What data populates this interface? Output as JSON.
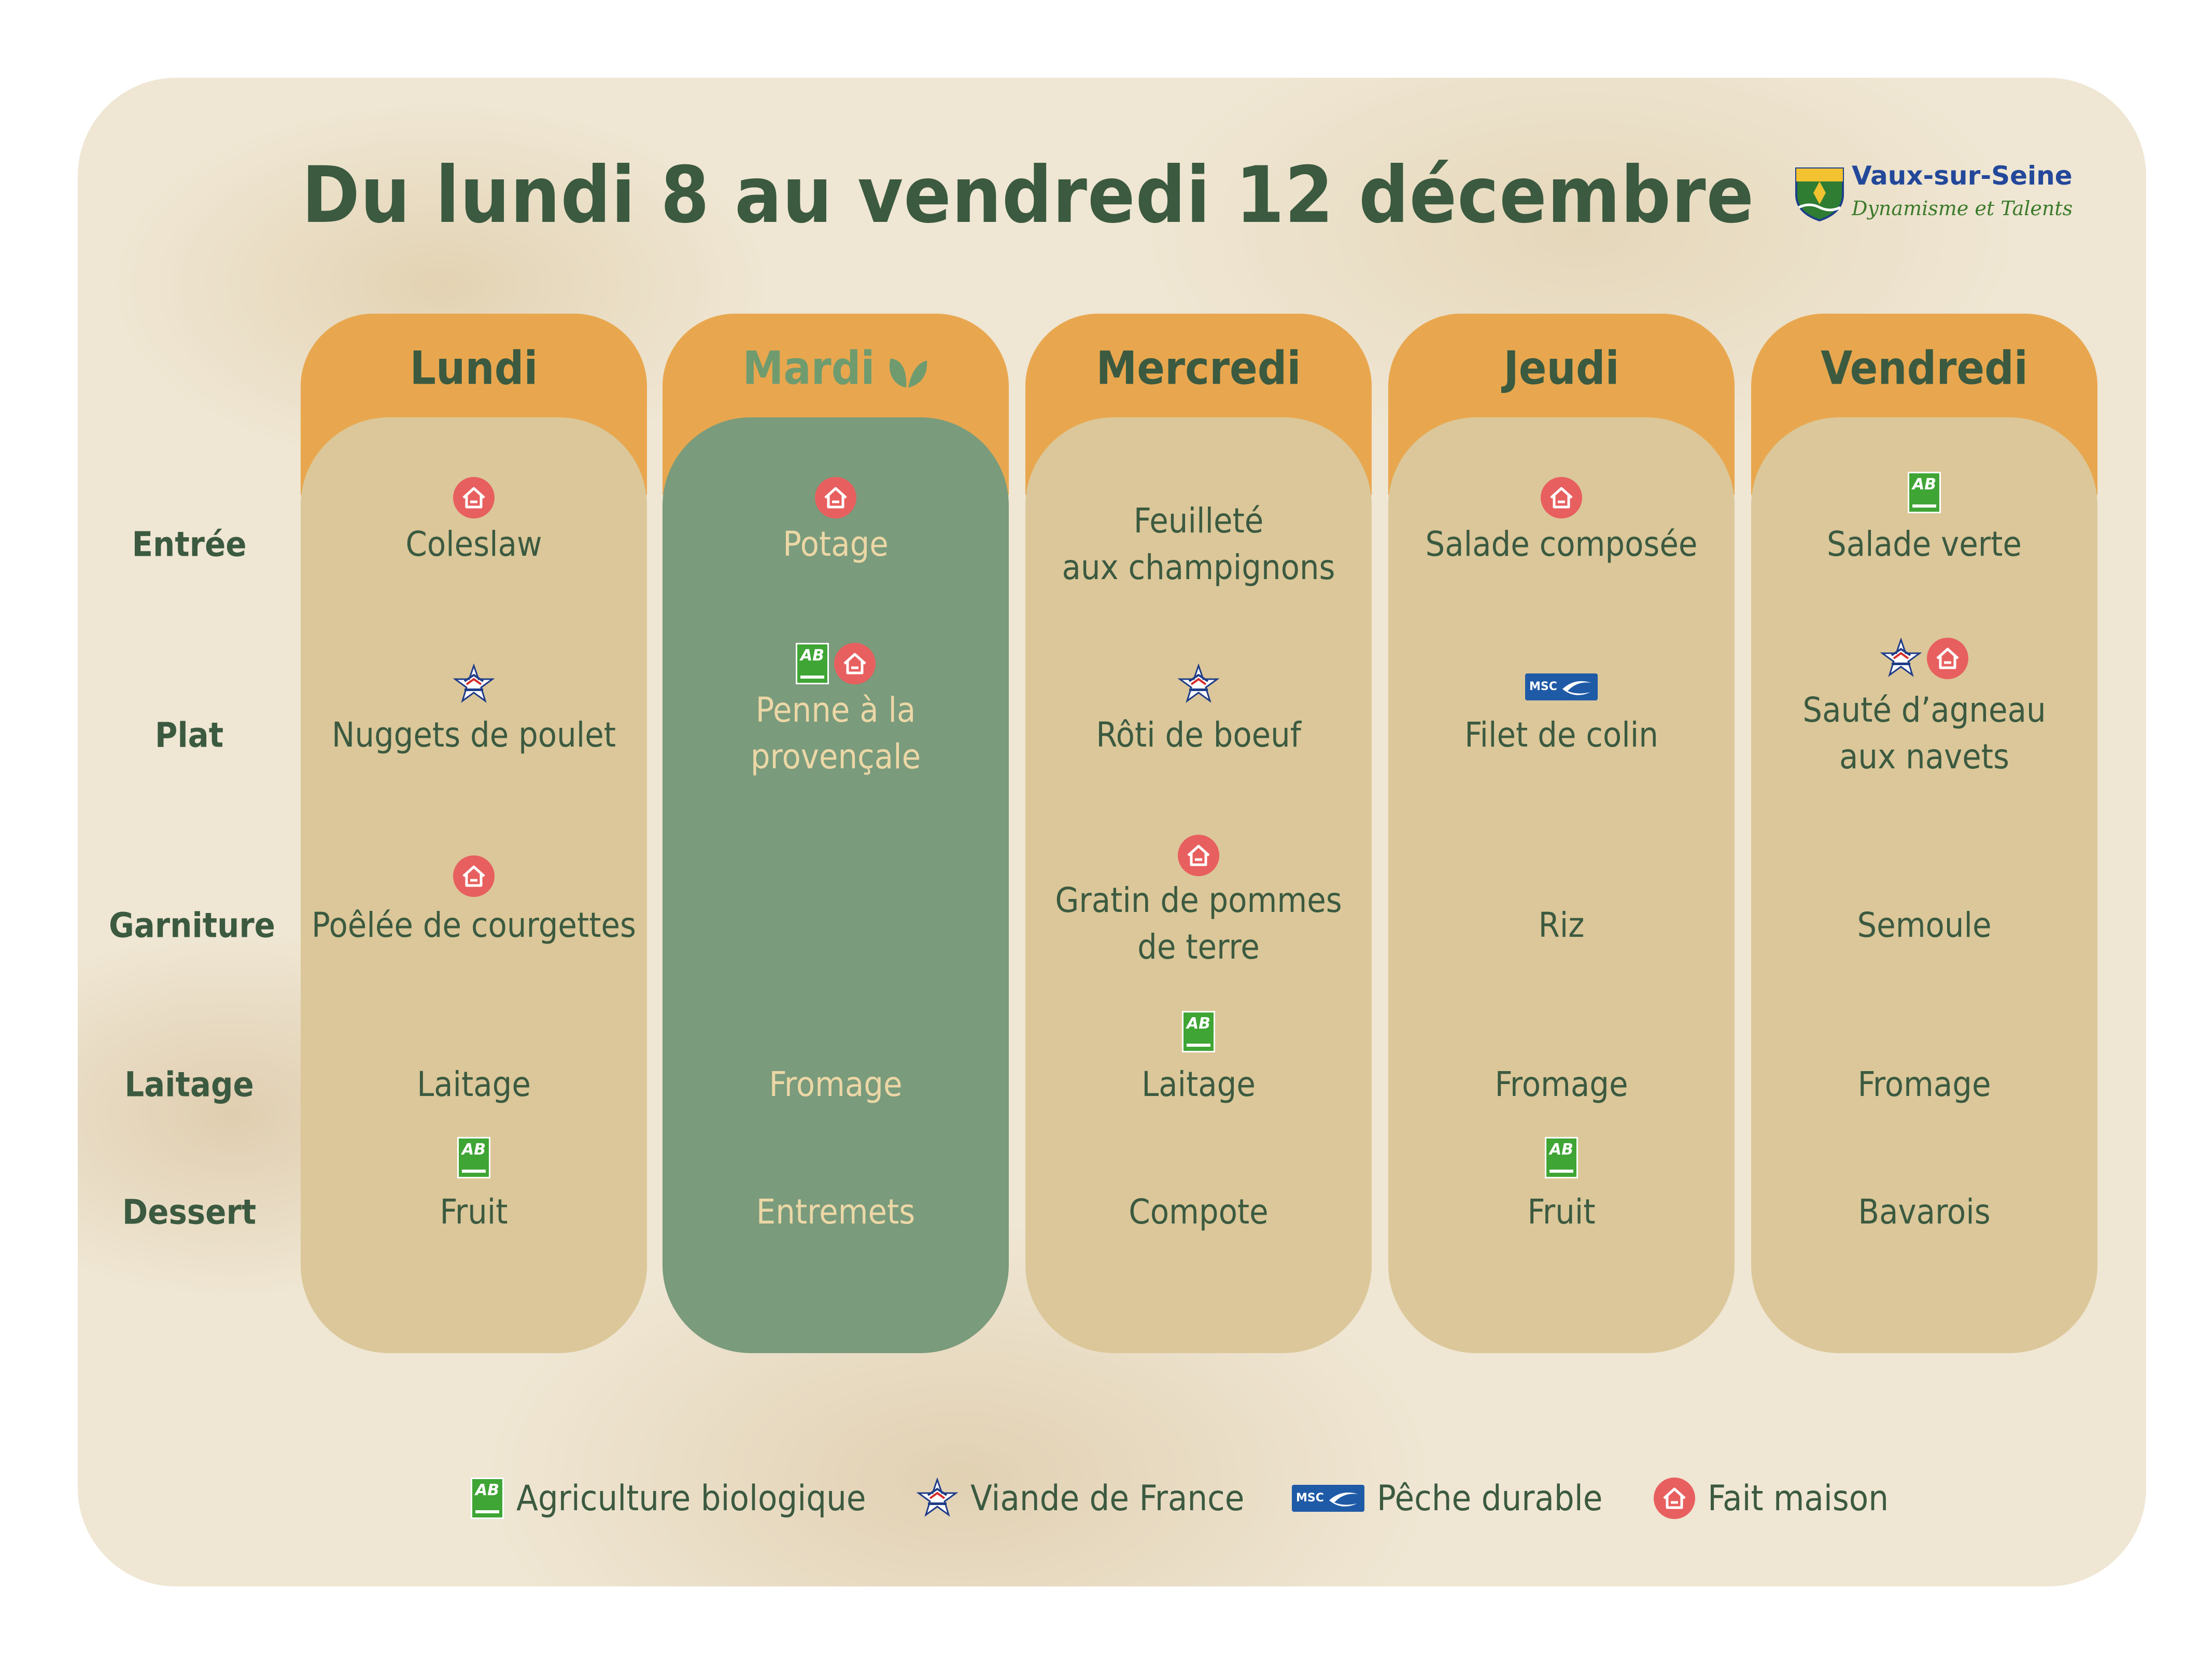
{
  "title": "Du lundi 8 au vendredi 12 décembre",
  "logo": {
    "name": "Vaux-sur-Seine",
    "slogan": "Dynamisme et Talents"
  },
  "rows": [
    "Entrée",
    "Plat",
    "Garniture",
    "Laitage",
    "Dessert"
  ],
  "days": [
    {
      "name": "Lundi",
      "highlight": false,
      "entree": "Coleslaw",
      "plat": "Nuggets de poulet",
      "garniture": "Poêlée de courgettes",
      "laitage": "Laitage",
      "dessert": "Fruit"
    },
    {
      "name": "Mardi",
      "highlight": true,
      "entree": "Potage",
      "plat_l1": "Penne à la",
      "plat_l2": "provençale",
      "laitage": "Fromage",
      "dessert": "Entremets"
    },
    {
      "name": "Mercredi",
      "highlight": false,
      "entree_l1": "Feuilleté",
      "entree_l2": "aux champignons",
      "plat": "Rôti de boeuf",
      "garniture_l1": "Gratin de pommes",
      "garniture_l2": "de terre",
      "laitage": "Laitage",
      "dessert": "Compote"
    },
    {
      "name": "Jeudi",
      "highlight": false,
      "entree": "Salade composée",
      "plat": "Filet de colin",
      "garniture": "Riz",
      "laitage": "Fromage",
      "dessert": "Fruit"
    },
    {
      "name": "Vendredi",
      "highlight": false,
      "entree": "Salade verte",
      "plat_l1": "Sauté d’agneau",
      "plat_l2": "aux navets",
      "garniture": "Semoule",
      "laitage": "Fromage",
      "dessert": "Bavarois"
    }
  ],
  "legend": [
    {
      "icon": "ab-organic-icon",
      "label": "Agriculture biologique"
    },
    {
      "icon": "viande-de-france-icon",
      "label": "Viande de France"
    },
    {
      "icon": "msc-icon",
      "label": "Pêche durable"
    },
    {
      "icon": "fait-maison-icon",
      "label": "Fait maison"
    }
  ],
  "badge_texts": {
    "ab": "AB",
    "msc": "MSC"
  },
  "colors": {
    "text_dark_green": "#3b5a40",
    "header_orange": "#e8a74f",
    "column_beige": "#dbc799",
    "column_green": "#7a9b7c",
    "fait_maison_red": "#e85f5f",
    "organic_green": "#3fa535",
    "msc_blue": "#1f5aa6"
  }
}
